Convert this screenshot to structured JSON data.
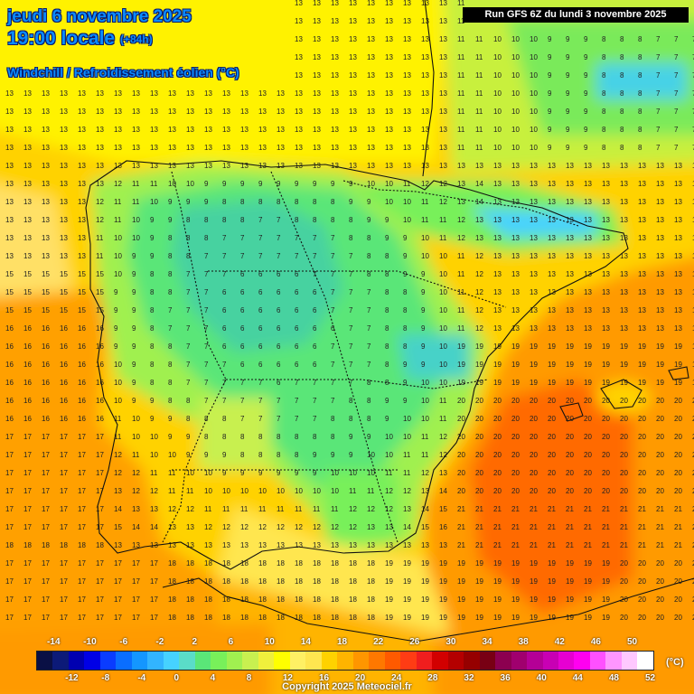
{
  "header": {
    "date_line": "jeudi 6 novembre 2025",
    "time_line": "19:00 locale",
    "time_offset": "(+84h)",
    "subtitle": "Windchill / Refroidissement éolien (°C)",
    "run_label": "Run GFS 6Z du lundi 3 novembre 2025"
  },
  "legend": {
    "top_labels": [
      "-14",
      "-10",
      "-6",
      "-2",
      "2",
      "6",
      "10",
      "14",
      "18",
      "22",
      "26",
      "30",
      "34",
      "38",
      "42",
      "46",
      "50"
    ],
    "bottom_labels": [
      "-12",
      "-8",
      "-4",
      "0",
      "4",
      "8",
      "12",
      "16",
      "20",
      "24",
      "28",
      "32",
      "36",
      "40",
      "44",
      "48",
      "52"
    ],
    "unit": "(°C)",
    "colors": [
      "#0a1045",
      "#0c1a78",
      "#0000b0",
      "#0000e6",
      "#0a3cff",
      "#0a6eff",
      "#1496ff",
      "#32b4ff",
      "#46d2ff",
      "#5adcc8",
      "#5ae678",
      "#78f05a",
      "#a0f050",
      "#c8f050",
      "#f0f03c",
      "#ffff00",
      "#fff064",
      "#ffe650",
      "#ffd200",
      "#ffb400",
      "#ff9600",
      "#ff7800",
      "#ff5a00",
      "#ff3c14",
      "#f01e1e",
      "#d20000",
      "#b40000",
      "#960000",
      "#780014",
      "#8c0050",
      "#a0006e",
      "#b40096",
      "#c800b4",
      "#e600d2",
      "#ff00f0",
      "#ff50ff",
      "#ff96ff",
      "#ffc8ff",
      "#ffffff"
    ]
  },
  "copyright": "Copyright 2025 Meteociel.fr"
}
